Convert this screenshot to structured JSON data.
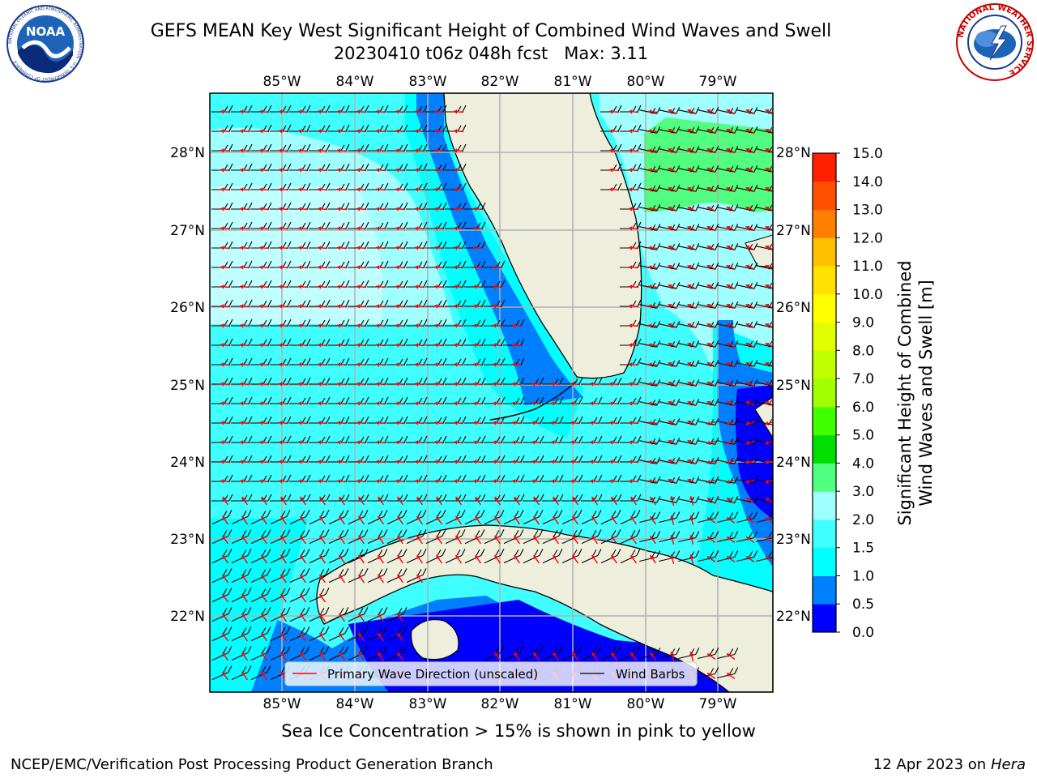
{
  "header": {
    "title": "GEFS MEAN Key West Significant Height of Combined Wind Waves and Swell",
    "subtitle_line": "20230410 t06z 048h fcst   Max: 3.11"
  },
  "logos": {
    "noaa": "NOAA",
    "noaa_ring": "NATIONAL OCEANIC AND ATMOSPHERIC ADMINISTRATION · U.S. DEPARTMENT OF COMMERCE",
    "nws_ring": "NATIONAL WEATHER SERVICE"
  },
  "map": {
    "lon_labels": [
      "85°W",
      "84°W",
      "83°W",
      "82°W",
      "81°W",
      "80°W",
      "79°W"
    ],
    "lat_labels": [
      "28°N",
      "27°N",
      "26°N",
      "25°N",
      "24°N",
      "23°N",
      "22°N"
    ],
    "colors": {
      "land": "#eeeedd",
      "coast": "#000000",
      "grid": "#b0b0b0",
      "wave_arrow": "#ff0000",
      "wind_barb": "#000000"
    }
  },
  "legend": {
    "wave_direction": "Primary Wave Direction (unscaled)",
    "wind_barbs": "Wind Barbs"
  },
  "colorbar": {
    "label_line1": "Significant Height of Combined",
    "label_line2": "Wind Waves and Swell [m]",
    "ticks": [
      "0.0",
      "0.5",
      "1.0",
      "1.5",
      "2.0",
      "3.0",
      "4.0",
      "5.0",
      "6.0",
      "7.0",
      "8.0",
      "9.0",
      "10.0",
      "11.0",
      "12.0",
      "13.0",
      "14.0",
      "15.0"
    ],
    "colors": [
      "#0000ff",
      "#0080ff",
      "#00ffff",
      "#40ffff",
      "#a0ffff",
      "#50ff80",
      "#00e000",
      "#40ff00",
      "#a0ff00",
      "#c0ff00",
      "#e0ff00",
      "#ffff00",
      "#ffe000",
      "#ffc000",
      "#ff8000",
      "#ff5000",
      "#ff2000"
    ]
  },
  "footer": {
    "note": "Sea Ice Concentration > 15% is shown in pink to yellow",
    "left": "NCEP/EMC/Verification Post Processing Product Generation Branch",
    "right_date": "12 Apr 2023 on",
    "right_host": "Hera"
  }
}
